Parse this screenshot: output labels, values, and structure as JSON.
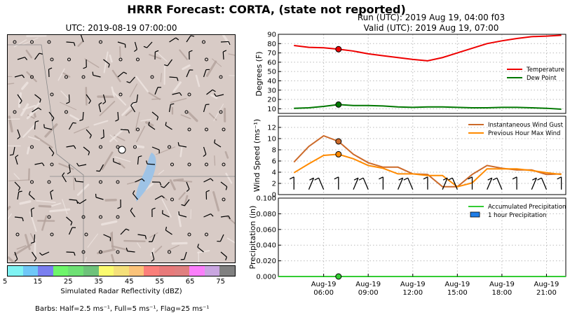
{
  "title": "HRRR Forecast: CORTA, (state not reported)",
  "map": {
    "title": "UTC: 2019-08-19 07:00:00",
    "colorbar_label": "Simulated Radar Reflectivity (dBZ)",
    "colorbar_ticks": [
      "5",
      "15",
      "25",
      "35",
      "45",
      "55",
      "65",
      "75"
    ],
    "colorbar_colors": [
      "#7ff3f3",
      "#6fc7f7",
      "#7a7ff0",
      "#6ef56a",
      "#6ee074",
      "#6ec27a",
      "#fbfb70",
      "#f5e07a",
      "#fbc37a",
      "#fb7f7a",
      "#e87a7a",
      "#e07f7f",
      "#fb7ffb",
      "#c9a6e0",
      "#808080"
    ],
    "barbs_note": "Barbs: Half=2.5 ms⁻¹, Full=5 ms⁻¹, Flag=25 ms⁻¹"
  },
  "run_info": {
    "run": "Run (UTC): 2019 Aug 19, 04:00 f03",
    "valid": "Valid (UTC): 2019 Aug 19, 07:00"
  },
  "chart_data": [
    {
      "type": "line",
      "ylabel": "Degrees (F)",
      "ylim": [
        5,
        90
      ],
      "yticks": [
        10,
        20,
        30,
        40,
        50,
        60,
        70,
        80,
        90
      ],
      "x_hours": [
        4,
        5,
        6,
        7,
        8,
        9,
        10,
        11,
        12,
        13,
        14,
        15,
        16,
        17,
        18,
        19,
        20,
        21,
        22
      ],
      "series": [
        {
          "name": "Temperature",
          "color": "#ee0000",
          "values": [
            78,
            76,
            75.5,
            74,
            72,
            69,
            67,
            65,
            63,
            61.5,
            65,
            70,
            75,
            80,
            83,
            85.5,
            87.5,
            88,
            89
          ]
        },
        {
          "name": "Dew Point",
          "color": "#007700",
          "values": [
            10.5,
            11,
            12.5,
            14.5,
            13.5,
            13.5,
            13,
            12,
            11.5,
            12,
            12,
            11.5,
            11,
            11,
            11.5,
            11.5,
            11,
            10.5,
            9.5
          ]
        }
      ],
      "marker_hour": 7,
      "legend": "right"
    },
    {
      "type": "line",
      "ylabel": "Wind Speed (ms⁻¹)",
      "ylim": [
        0,
        14
      ],
      "yticks": [
        0,
        2,
        4,
        6,
        8,
        10,
        12
      ],
      "x_hours": [
        4,
        5,
        6,
        7,
        8,
        9,
        10,
        11,
        12,
        13,
        14,
        15,
        16,
        17,
        18,
        19,
        20,
        21,
        22
      ],
      "series": [
        {
          "name": "Instantaneous Wind Gust",
          "color": "#cc6a2a",
          "values": [
            5.8,
            8.6,
            10.5,
            9.5,
            7.2,
            5.7,
            4.9,
            4.9,
            3.7,
            3.6,
            1.4,
            1.4,
            3.6,
            5.2,
            4.7,
            4.4,
            4.4,
            3.6,
            3.7
          ]
        },
        {
          "name": "Previous Hour Max Wind",
          "color": "#ff8a00",
          "values": [
            3.9,
            5.5,
            7.0,
            7.2,
            6.4,
            5.2,
            4.7,
            3.7,
            3.7,
            3.4,
            3.4,
            1.4,
            2.1,
            4.6,
            4.6,
            4.6,
            4.3,
            3.9,
            3.6
          ]
        }
      ],
      "marker_hour": 7,
      "legend": "top-right"
    },
    {
      "type": "bar",
      "ylabel": "Precipitation (in)",
      "ylim": [
        0,
        0.1
      ],
      "yticks": [
        "0.000",
        "0.020",
        "0.040",
        "0.060",
        "0.080",
        "0.100"
      ],
      "series": [
        {
          "name": "Accumulated Precipitation",
          "color": "#33cc33",
          "values": [
            0,
            0,
            0,
            0,
            0,
            0,
            0,
            0,
            0,
            0,
            0,
            0,
            0,
            0,
            0,
            0,
            0,
            0,
            0
          ]
        },
        {
          "name": "1 hour Precipitation",
          "color": "#1e7ce6",
          "values": [
            0,
            0,
            0,
            0,
            0,
            0,
            0,
            0,
            0,
            0,
            0,
            0,
            0,
            0,
            0,
            0,
            0,
            0,
            0
          ]
        }
      ],
      "marker_hour": 7,
      "legend": "top-right"
    }
  ],
  "x_tick_labels": [
    {
      "hour": 6,
      "label": "Aug-19\n06:00"
    },
    {
      "hour": 9,
      "label": "Aug-19\n09:00"
    },
    {
      "hour": 12,
      "label": "Aug-19\n12:00"
    },
    {
      "hour": 15,
      "label": "Aug-19\n15:00"
    },
    {
      "hour": 18,
      "label": "Aug-19\n18:00"
    },
    {
      "hour": 21,
      "label": "Aug-19\n21:00"
    }
  ]
}
